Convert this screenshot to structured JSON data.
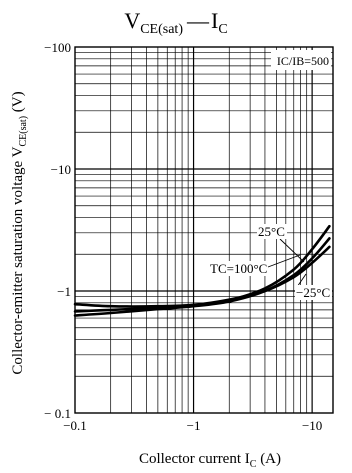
{
  "chart_data": {
    "type": "line",
    "title": {
      "main": "V",
      "sub": "CE(sat)",
      "sep": "—",
      "main2": "I",
      "sub2": "C"
    },
    "xlabel": {
      "main": "Collector current  I",
      "sub": "C",
      "unit": "  (A)"
    },
    "ylabel": {
      "main": "Collector-emitter saturation voltage  V",
      "sub": "CE(sat)",
      "unit": "  (V)"
    },
    "x_scale": "log",
    "y_scale": "log",
    "xlim": [
      -0.1,
      -15
    ],
    "ylim": [
      -0.1,
      -100
    ],
    "x_ticks": [
      {
        "v": -0.1,
        "label": "−0.1"
      },
      {
        "v": -1,
        "label": "−1"
      },
      {
        "v": -10,
        "label": "−10"
      }
    ],
    "y_ticks": [
      {
        "v": -0.1,
        "label": "− 0.1"
      },
      {
        "v": -1,
        "label": "−1"
      },
      {
        "v": -10,
        "label": "−10"
      },
      {
        "v": -100,
        "label": "−100"
      }
    ],
    "grid": true,
    "condition": "IC/IB=500",
    "series": [
      {
        "name": "25°C",
        "x": [
          -0.1,
          -0.2,
          -0.5,
          -1,
          -2,
          -4,
          -7,
          -10,
          -14
        ],
        "y": [
          -0.68,
          -0.7,
          -0.73,
          -0.76,
          -0.84,
          -1.05,
          -1.5,
          -2.2,
          -3.4
        ]
      },
      {
        "name": "TC=100°C",
        "x": [
          -0.1,
          -0.2,
          -0.5,
          -1,
          -2,
          -4,
          -7,
          -10,
          -14
        ],
        "y": [
          -0.63,
          -0.66,
          -0.71,
          -0.75,
          -0.82,
          -1.0,
          -1.35,
          -1.85,
          -2.7
        ]
      },
      {
        "name": "−25°C",
        "x": [
          -0.1,
          -0.2,
          -0.5,
          -1,
          -2,
          -4,
          -7,
          -10,
          -14
        ],
        "y": [
          -0.78,
          -0.75,
          -0.75,
          -0.77,
          -0.85,
          -1.0,
          -1.3,
          -1.7,
          -2.3
        ]
      }
    ],
    "annotations": [
      {
        "text": "25°C",
        "series": "25°C"
      },
      {
        "text": "TC=100°C",
        "series": "TC=100°C"
      },
      {
        "text": "−25°C",
        "series": "−25°C"
      }
    ]
  }
}
